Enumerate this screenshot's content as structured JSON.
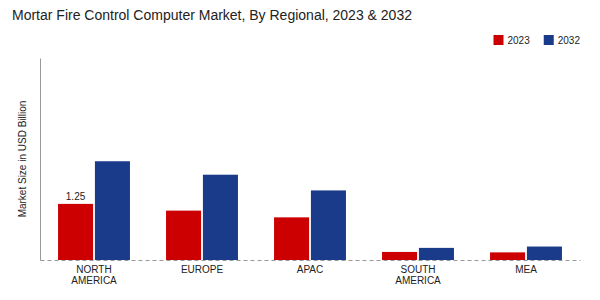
{
  "chart_data": {
    "type": "bar",
    "title": "Mortar Fire Control Computer Market, By Regional, 2023 & 2032",
    "ylabel": "Market Size in USD Billion",
    "categories": [
      "NORTH\nAMERICA",
      "EUROPE",
      "APAC",
      "SOUTH\nAMERICA",
      "MEA"
    ],
    "series": [
      {
        "name": "2023",
        "color": "#cc0000",
        "values": [
          1.25,
          1.1,
          0.95,
          0.18,
          0.17
        ]
      },
      {
        "name": "2032",
        "color": "#1a3a8a",
        "values": [
          2.2,
          1.9,
          1.55,
          0.27,
          0.3
        ]
      }
    ],
    "annotations": [
      {
        "text": "1.25",
        "x": "NORTH\nAMERICA",
        "y": 1.25
      }
    ],
    "ylim": [
      0,
      4.5
    ],
    "tick_labels": "x",
    "grid": false,
    "legend": "upper right"
  }
}
